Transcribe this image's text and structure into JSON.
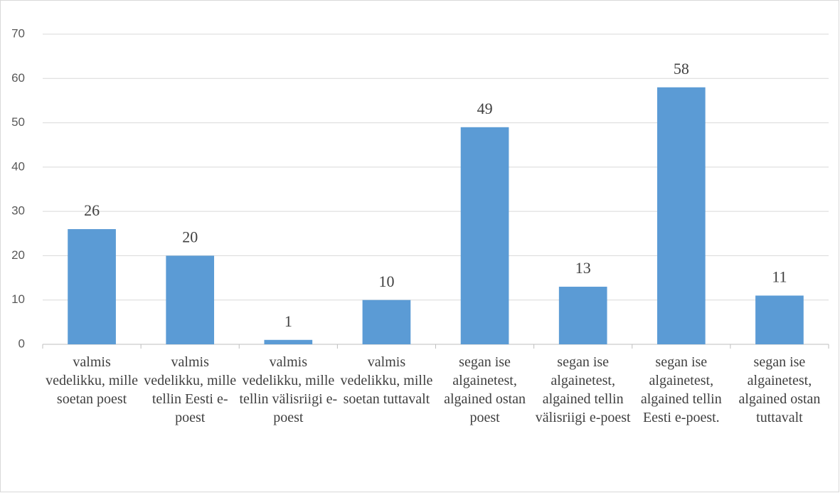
{
  "chart_data": {
    "type": "bar",
    "categories": [
      "valmis vedelikku, mille soetan poest",
      "valmis vedelikku, mille tellin Eesti e-poest",
      "valmis vedelikku, mille tellin välisriigi e-poest",
      "valmis vedelikku, mille soetan tuttavalt",
      "segan ise algainetest, algained ostan poest",
      "segan ise algainetest, algained tellin välisriigi e-poest",
      "segan ise algainetest, algained tellin Eesti e-poest.",
      "segan ise algainetest, algained ostan tuttavalt"
    ],
    "values": [
      26,
      20,
      1,
      10,
      49,
      13,
      58,
      11
    ],
    "color": "#5b9bd5",
    "ylim": [
      0,
      70
    ],
    "yticks": [
      0,
      10,
      20,
      30,
      40,
      50,
      60,
      70
    ],
    "grid": true
  }
}
